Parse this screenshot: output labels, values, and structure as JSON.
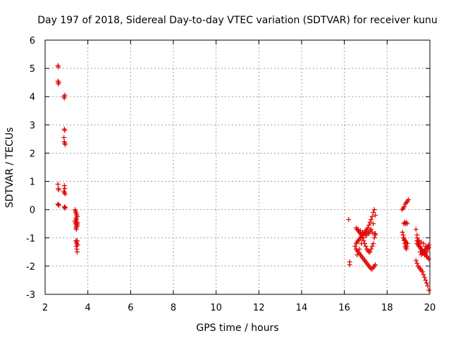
{
  "chart_data": {
    "type": "scatter",
    "title": "Day 197 of 2018, Sidereal Day-to-day VTEC variation (SDTVAR) for receiver kunu",
    "xlabel": "GPS time / hours",
    "ylabel": "SDTVAR / TECUs",
    "xlim": [
      2,
      20
    ],
    "ylim": [
      -3,
      6
    ],
    "xticks": [
      2,
      4,
      6,
      8,
      10,
      12,
      14,
      16,
      18,
      20
    ],
    "yticks": [
      -3,
      -2,
      -1,
      0,
      1,
      2,
      3,
      4,
      5,
      6
    ],
    "grid": true,
    "marker": "+",
    "color": "#e00000",
    "series": [
      {
        "name": "SDTVAR",
        "x": [
          2.6,
          2.62,
          2.64,
          2.6,
          2.62,
          2.6,
          2.62,
          2.64,
          2.6,
          2.62,
          2.64,
          2.88,
          2.9,
          2.92,
          2.9,
          2.92,
          2.88,
          2.9,
          2.92,
          2.94,
          2.9,
          2.92,
          2.88,
          2.9,
          2.94,
          2.9,
          2.92,
          2.94,
          3.4,
          3.42,
          3.44,
          3.46,
          3.48,
          3.5,
          3.45,
          3.47,
          3.4,
          3.42,
          3.44,
          3.46,
          3.48,
          3.5,
          3.52,
          3.44,
          3.46,
          3.48,
          3.5,
          3.44,
          3.46,
          3.48,
          3.5,
          3.52,
          3.46,
          3.48,
          3.5,
          16.2,
          16.25,
          16.25,
          16.5,
          16.55,
          16.6,
          16.65,
          16.7,
          16.75,
          16.8,
          16.85,
          16.9,
          16.95,
          17.0,
          17.05,
          17.1,
          17.15,
          17.2,
          17.25,
          17.3,
          17.35,
          17.4,
          17.45,
          16.55,
          16.6,
          16.65,
          16.7,
          16.75,
          16.8,
          16.85,
          16.9,
          16.95,
          17.0,
          17.05,
          17.1,
          17.15,
          17.2,
          17.25,
          17.3,
          17.35,
          17.4,
          16.6,
          16.65,
          16.7,
          16.75,
          16.8,
          16.85,
          16.9,
          16.95,
          17.0,
          17.05,
          17.1,
          17.15,
          17.2,
          17.25,
          17.3,
          17.35,
          17.4,
          17.45,
          16.6,
          16.7,
          16.8,
          16.9,
          17.0,
          17.1,
          17.2,
          17.3,
          17.4,
          17.45,
          16.55,
          16.65,
          16.75,
          16.85,
          16.95,
          17.05,
          17.15,
          17.25,
          17.35,
          17.45,
          18.7,
          18.75,
          18.8,
          18.85,
          18.9,
          18.95,
          19.0,
          18.72,
          18.75,
          18.78,
          18.8,
          18.82,
          18.85,
          18.88,
          18.9,
          18.92,
          18.95,
          18.78,
          18.82,
          18.86,
          18.9,
          18.94,
          18.76,
          18.8,
          18.84,
          18.88,
          18.92,
          19.35,
          19.4,
          19.45,
          19.5,
          19.55,
          19.6,
          19.65,
          19.7,
          19.75,
          19.8,
          19.85,
          19.9,
          19.95,
          19.4,
          19.45,
          19.5,
          19.55,
          19.6,
          19.65,
          19.7,
          19.75,
          19.8,
          19.85,
          19.9,
          19.95,
          19.4,
          19.45,
          19.5,
          19.55,
          19.6,
          19.65,
          19.7,
          19.75,
          19.8,
          19.85,
          19.9,
          19.95,
          19.35,
          19.4,
          19.45,
          19.5,
          19.55,
          19.6,
          19.65,
          19.7,
          19.75,
          19.8,
          19.85,
          19.9,
          19.95,
          19.4,
          19.5,
          19.6,
          19.7,
          19.8,
          19.9
        ],
        "y": [
          5.1,
          5.05,
          4.5,
          4.55,
          4.45,
          0.9,
          0.75,
          0.7,
          0.2,
          0.18,
          0.15,
          4.0,
          3.95,
          4.05,
          2.85,
          2.8,
          2.55,
          2.4,
          2.35,
          2.3,
          0.85,
          0.75,
          0.65,
          0.6,
          0.55,
          0.1,
          0.05,
          0.08,
          0.0,
          -0.05,
          -0.1,
          -0.15,
          -0.2,
          -0.25,
          -0.3,
          -0.35,
          -0.4,
          -0.45,
          -0.5,
          -0.55,
          -0.6,
          -0.5,
          -0.45,
          -0.65,
          -0.7,
          -0.6,
          -0.55,
          -1.1,
          -1.15,
          -1.2,
          -1.1,
          -1.25,
          -1.3,
          -1.4,
          -1.5,
          -0.35,
          -1.85,
          -1.95,
          -1.3,
          -1.4,
          -1.45,
          -1.5,
          -1.55,
          -1.6,
          -1.65,
          -1.7,
          -1.75,
          -1.8,
          -1.85,
          -1.9,
          -1.95,
          -2.0,
          -2.05,
          -2.1,
          -2.1,
          -2.05,
          -2.0,
          -1.95,
          -1.2,
          -1.15,
          -1.1,
          -1.05,
          -1.0,
          -0.95,
          -0.9,
          -0.85,
          -0.8,
          -0.75,
          -0.7,
          -0.65,
          -0.55,
          -0.45,
          -0.35,
          -0.25,
          -0.1,
          0.0,
          -0.7,
          -0.75,
          -0.8,
          -0.85,
          -0.9,
          -1.0,
          -1.1,
          -1.2,
          -1.3,
          -1.4,
          -1.45,
          -1.5,
          -1.5,
          -1.4,
          -1.3,
          -1.2,
          -1.0,
          -0.85,
          -1.6,
          -1.4,
          -1.2,
          -1.0,
          -0.9,
          -0.8,
          -0.75,
          -0.8,
          -0.85,
          -0.9,
          -0.65,
          -0.7,
          -0.75,
          -0.8,
          -0.85,
          -0.9,
          -0.85,
          -0.7,
          -0.5,
          -0.2,
          0.0,
          0.05,
          0.1,
          0.2,
          0.25,
          0.3,
          0.35,
          -0.8,
          -0.9,
          -1.0,
          -1.1,
          -1.2,
          -1.3,
          -1.35,
          -1.4,
          -1.3,
          -1.2,
          -0.5,
          -0.45,
          -0.5,
          -0.45,
          -0.5,
          -1.0,
          -1.05,
          -1.1,
          -1.15,
          -1.2,
          -0.7,
          -0.9,
          -1.1,
          -1.3,
          -1.5,
          -1.6,
          -1.55,
          -1.5,
          -1.45,
          -1.4,
          -1.35,
          -1.3,
          -1.25,
          -1.2,
          -1.25,
          -1.3,
          -1.35,
          -1.4,
          -1.45,
          -1.5,
          -1.55,
          -1.6,
          -1.65,
          -1.7,
          -1.75,
          -1.1,
          -1.15,
          -1.2,
          -1.3,
          -1.4,
          -1.5,
          -1.55,
          -1.6,
          -1.55,
          -1.5,
          -1.4,
          -1.35,
          -1.8,
          -1.9,
          -2.0,
          -2.05,
          -2.1,
          -2.15,
          -2.2,
          -2.3,
          -2.4,
          -2.5,
          -2.6,
          -2.7,
          -2.85,
          -1.0,
          -1.1,
          -1.15,
          -1.2,
          -1.3,
          -1.4
        ]
      }
    ]
  }
}
